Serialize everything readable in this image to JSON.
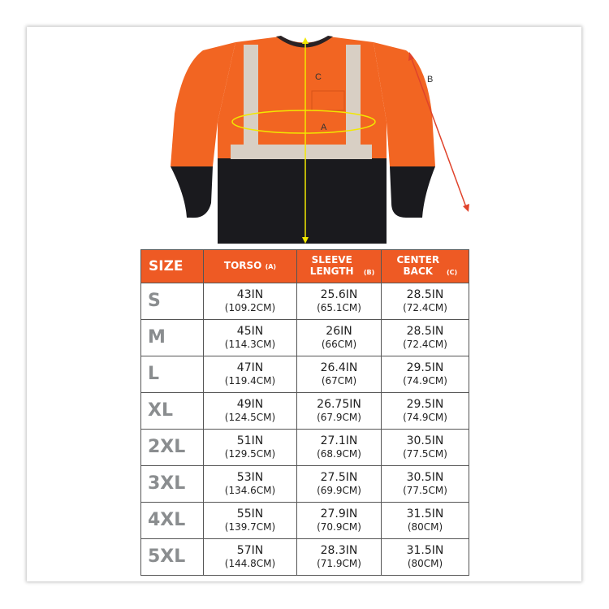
{
  "colors": {
    "accent": "#ee5a24",
    "shirt_orange": "#f26522",
    "shirt_black": "#1a1a1e",
    "measure_line": "#f2e800",
    "arrow": "#e0432b",
    "size_text": "#8a8d8f"
  },
  "diagram": {
    "label_a": "A",
    "label_b": "B",
    "label_c": "C"
  },
  "table": {
    "headers": [
      {
        "label": "SIZE",
        "sub": ""
      },
      {
        "label": "TORSO",
        "sub": "(A)"
      },
      {
        "label": "SLEEVE LENGTH",
        "sub": "(B)"
      },
      {
        "label": "CENTER BACK",
        "sub": "(C)"
      }
    ],
    "rows": [
      {
        "size": "S",
        "torso_in": "43IN",
        "torso_cm": "(109.2CM)",
        "sleeve_in": "25.6IN",
        "sleeve_cm": "(65.1CM)",
        "back_in": "28.5IN",
        "back_cm": "(72.4CM)"
      },
      {
        "size": "M",
        "torso_in": "45IN",
        "torso_cm": "(114.3CM)",
        "sleeve_in": "26IN",
        "sleeve_cm": "(66CM)",
        "back_in": "28.5IN",
        "back_cm": "(72.4CM)"
      },
      {
        "size": "L",
        "torso_in": "47IN",
        "torso_cm": "(119.4CM)",
        "sleeve_in": "26.4IN",
        "sleeve_cm": "(67CM)",
        "back_in": "29.5IN",
        "back_cm": "(74.9CM)"
      },
      {
        "size": "XL",
        "torso_in": "49IN",
        "torso_cm": "(124.5CM)",
        "sleeve_in": "26.75IN",
        "sleeve_cm": "(67.9CM)",
        "back_in": "29.5IN",
        "back_cm": "(74.9CM)"
      },
      {
        "size": "2XL",
        "torso_in": "51IN",
        "torso_cm": "(129.5CM)",
        "sleeve_in": "27.1IN",
        "sleeve_cm": "(68.9CM)",
        "back_in": "30.5IN",
        "back_cm": "(77.5CM)"
      },
      {
        "size": "3XL",
        "torso_in": "53IN",
        "torso_cm": "(134.6CM)",
        "sleeve_in": "27.5IN",
        "sleeve_cm": "(69.9CM)",
        "back_in": "30.5IN",
        "back_cm": "(77.5CM)"
      },
      {
        "size": "4XL",
        "torso_in": "55IN",
        "torso_cm": "(139.7CM)",
        "sleeve_in": "27.9IN",
        "sleeve_cm": "(70.9CM)",
        "back_in": "31.5IN",
        "back_cm": "(80CM)"
      },
      {
        "size": "5XL",
        "torso_in": "57IN",
        "torso_cm": "(144.8CM)",
        "sleeve_in": "28.3IN",
        "sleeve_cm": "(71.9CM)",
        "back_in": "31.5IN",
        "back_cm": "(80CM)"
      }
    ]
  }
}
